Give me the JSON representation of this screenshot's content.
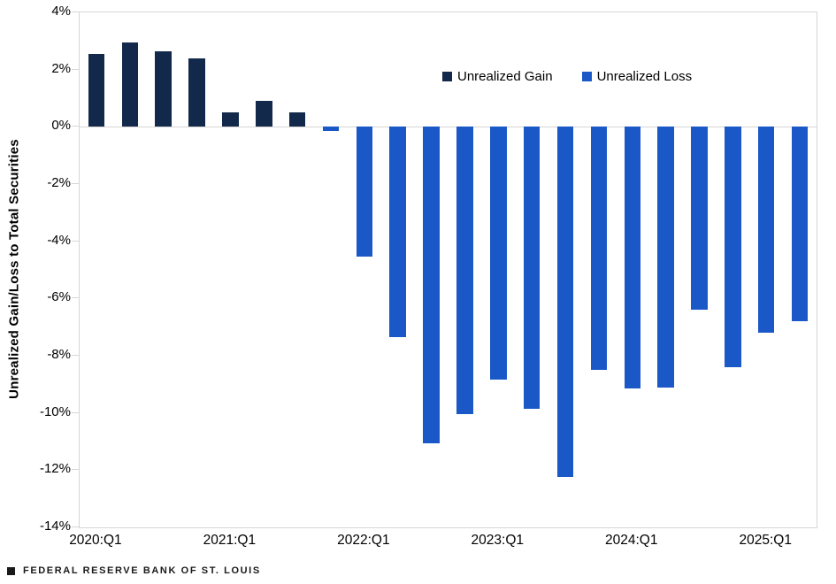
{
  "chart_data": {
    "type": "bar",
    "title": "",
    "ylabel": "Unrealized Gain/Loss to Total Securities",
    "xlabel": "",
    "ylim": [
      -14,
      4
    ],
    "y_ticks": [
      4,
      2,
      0,
      -2,
      -4,
      -6,
      -8,
      -10,
      -12,
      -14
    ],
    "y_tick_labels": [
      "4%",
      "2%",
      "0%",
      "-2%",
      "-4%",
      "-6%",
      "-8%",
      "-10%",
      "-12%",
      "-14%"
    ],
    "categories": [
      "2020:Q1",
      "2020:Q2",
      "2020:Q3",
      "2020:Q4",
      "2021:Q1",
      "2021:Q2",
      "2021:Q3",
      "2021:Q4",
      "2022:Q1",
      "2022:Q2",
      "2022:Q3",
      "2022:Q4",
      "2023:Q1",
      "2023:Q2",
      "2023:Q3",
      "2023:Q4",
      "2024:Q1",
      "2024:Q2",
      "2024:Q3",
      "2024:Q4",
      "2025:Q1",
      "2025:Q2"
    ],
    "values": [
      2.55,
      2.95,
      2.65,
      2.4,
      0.5,
      0.9,
      0.5,
      -0.15,
      -4.55,
      -7.35,
      -11.05,
      -10.05,
      -8.85,
      -9.85,
      -12.25,
      -8.5,
      -9.15,
      -9.1,
      -6.4,
      -8.4,
      -7.2,
      -6.8
    ],
    "series": [
      {
        "name": "Unrealized Gain",
        "color": "#13294b",
        "rule": "applies to values >= 0"
      },
      {
        "name": "Unrealized Loss",
        "color": "#1b58c7",
        "rule": "applies to values < 0"
      }
    ],
    "x_tick_labels": [
      "2020:Q1",
      "2021:Q1",
      "2022:Q1",
      "2023:Q1",
      "2024:Q1",
      "2025:Q1"
    ],
    "x_tick_indices": [
      0,
      4,
      8,
      12,
      16,
      20
    ],
    "grid": {
      "interior_gridlines": false,
      "zero_baseline": true,
      "plot_border": true
    },
    "legend_position": "inside-top-right"
  },
  "footer": {
    "marker_icon": "square",
    "source": "FEDERAL RESERVE BANK OF ST. LOUIS"
  },
  "colors": {
    "gain": "#13294b",
    "loss": "#1b58c7",
    "axis_line": "#d6d6d6",
    "text": "#000000",
    "footer_text": "#1a1a1a"
  }
}
